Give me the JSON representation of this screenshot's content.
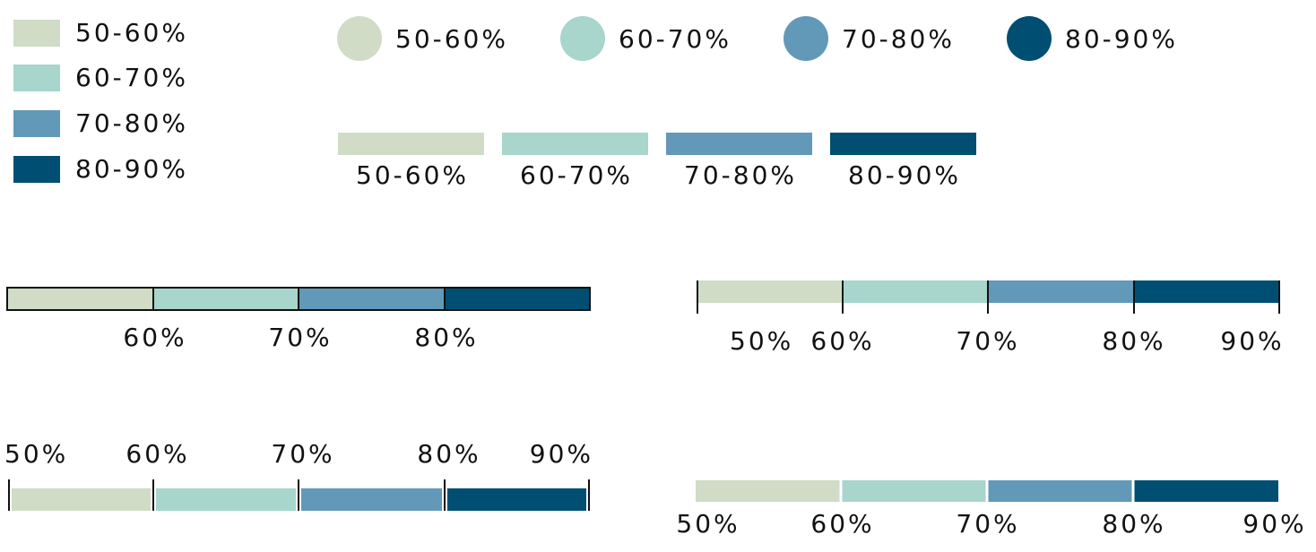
{
  "colors": [
    "#d0dcc6",
    "#a8d5cc",
    "#6299b8",
    "#004f73"
  ],
  "square_legend": {
    "items": [
      "50-60%",
      "60-70%",
      "70-80%",
      "80-90%"
    ]
  },
  "circle_legend": {
    "items": [
      "50-60%",
      "60-70%",
      "70-80%",
      "80-90%"
    ]
  },
  "bar_legend": {
    "items": [
      "50-60%",
      "60-70%",
      "70-80%",
      "80-90%"
    ]
  },
  "outlined_scale": {
    "ticks": [
      "60%",
      "70%",
      "80%"
    ]
  },
  "ticked_scale": {
    "ticks": [
      "50%",
      "60%",
      "70%",
      "80%",
      "90%"
    ]
  },
  "top_label_scale": {
    "ticks": [
      "50%",
      "60%",
      "70%",
      "80%",
      "90%"
    ]
  },
  "gapped_scale": {
    "ticks": [
      "50%",
      "60%",
      "70%",
      "80%",
      "90%"
    ]
  }
}
